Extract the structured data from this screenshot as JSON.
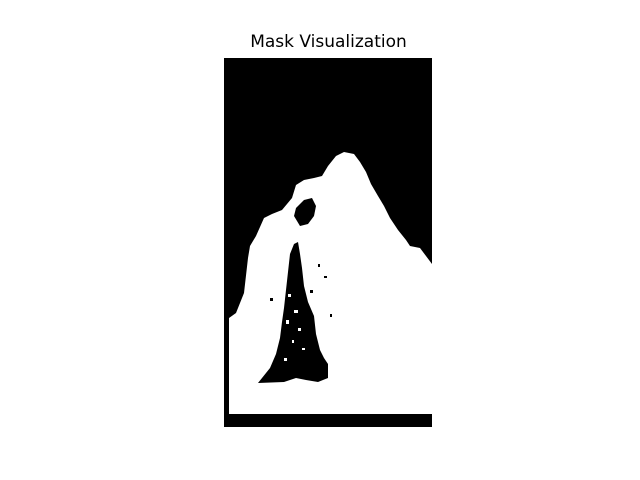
{
  "figure": {
    "title": "Mask Visualization"
  },
  "image": {
    "type": "binary-mask",
    "colors": {
      "background": "#000000",
      "foreground": "#ffffff",
      "page": "#ffffff"
    }
  }
}
